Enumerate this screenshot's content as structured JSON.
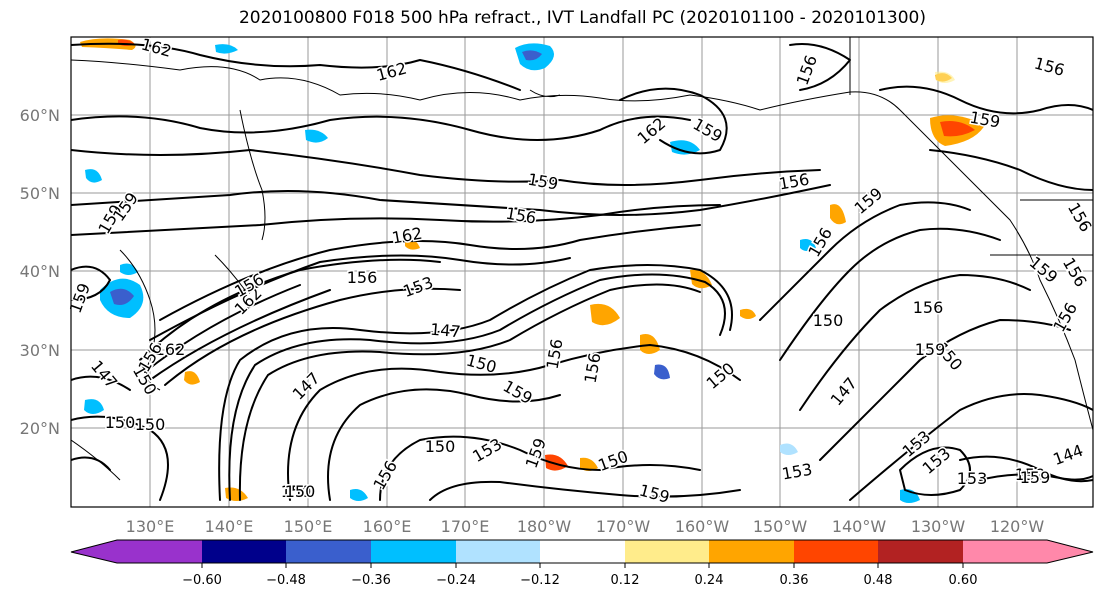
{
  "title": "2020100800 F018 500 hPa refract., IVT Landfall PC (2020101100 - 2020101300)",
  "lat_labels": [
    "60°N",
    "50°N",
    "40°N",
    "30°N",
    "20°N"
  ],
  "lon_labels": [
    "130°E",
    "140°E",
    "150°E",
    "160°E",
    "170°E",
    "180°W",
    "170°W",
    "160°W",
    "150°W",
    "140°W",
    "130°W",
    "120°W"
  ],
  "contour_labels": [
    "162",
    "162",
    "156",
    "156",
    "159",
    "162",
    "159",
    "156",
    "159",
    "156",
    "156",
    "159",
    "162",
    "156",
    "153",
    "162",
    "156",
    "159",
    "147",
    "147",
    "150",
    "156",
    "156",
    "159",
    "150",
    "156",
    "150",
    "150",
    "159",
    "147",
    "150",
    "147",
    "150",
    "153",
    "150",
    "159",
    "150",
    "156",
    "153",
    "159",
    "144",
    "150",
    "153",
    "156",
    "159",
    "162",
    "159",
    "159",
    "150",
    "156",
    "156",
    "153",
    "153",
    "159",
    "156",
    "150",
    "150"
  ],
  "colorbar": {
    "colors": [
      "#9932cc",
      "#00008b",
      "#3a5fcd",
      "#00bfff",
      "#b0e2ff",
      "#ffffff",
      "#ffec8b",
      "#ffa500",
      "#ff4500",
      "#b22222",
      "#ff88aa"
    ],
    "tick_labels": [
      "−0.60",
      "−0.48",
      "−0.36",
      "−0.24",
      "−0.12",
      "0.12",
      "0.24",
      "0.36",
      "0.48",
      "0.60"
    ]
  }
}
